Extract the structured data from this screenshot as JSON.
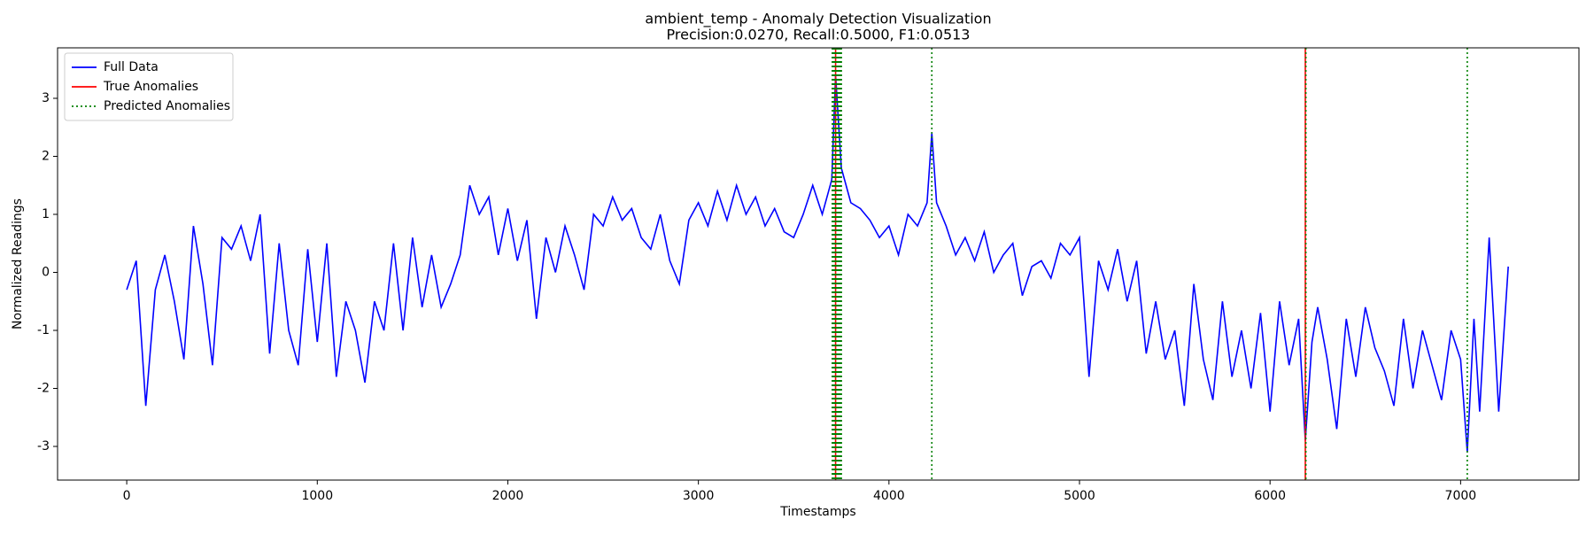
{
  "chart_data": {
    "type": "line",
    "title": "ambient_temp - Anomaly Detection Visualization",
    "subtitle": "Precision:0.0270, Recall:0.5000, F1:0.0513",
    "xlabel": "Timestamps",
    "ylabel": "Normalized Readings",
    "xlim": [
      -363,
      7621
    ],
    "ylim": [
      -3.58,
      3.87
    ],
    "xticks": [
      0,
      1000,
      2000,
      3000,
      4000,
      5000,
      6000,
      7000
    ],
    "yticks": [
      -3,
      -2,
      -1,
      0,
      1,
      2,
      3
    ],
    "legend": "upper left",
    "grid": false,
    "x": [
      0,
      50,
      100,
      150,
      200,
      250,
      300,
      350,
      400,
      450,
      500,
      550,
      600,
      650,
      700,
      750,
      800,
      850,
      900,
      950,
      1000,
      1050,
      1100,
      1150,
      1200,
      1250,
      1300,
      1350,
      1400,
      1450,
      1500,
      1550,
      1600,
      1650,
      1700,
      1750,
      1800,
      1850,
      1900,
      1950,
      2000,
      2050,
      2100,
      2150,
      2200,
      2250,
      2300,
      2350,
      2400,
      2450,
      2500,
      2550,
      2600,
      2650,
      2700,
      2750,
      2800,
      2850,
      2900,
      2950,
      3000,
      3050,
      3100,
      3150,
      3200,
      3250,
      3300,
      3350,
      3400,
      3450,
      3500,
      3550,
      3600,
      3650,
      3700,
      3720,
      3750,
      3800,
      3850,
      3900,
      3950,
      4000,
      4050,
      4100,
      4150,
      4200,
      4225,
      4250,
      4300,
      4350,
      4400,
      4450,
      4500,
      4550,
      4600,
      4650,
      4700,
      4750,
      4800,
      4850,
      4900,
      4950,
      5000,
      5050,
      5100,
      5150,
      5200,
      5250,
      5300,
      5350,
      5400,
      5450,
      5500,
      5550,
      5600,
      5650,
      5700,
      5750,
      5800,
      5850,
      5900,
      5950,
      6000,
      6050,
      6100,
      6150,
      6185,
      6220,
      6250,
      6300,
      6350,
      6400,
      6450,
      6500,
      6550,
      6600,
      6650,
      6700,
      6750,
      6800,
      6850,
      6900,
      6950,
      7000,
      7035,
      7070,
      7100,
      7150,
      7200,
      7250
    ],
    "series": [
      {
        "name": "Full Data",
        "color": "#0000ff",
        "values": [
          -0.3,
          0.2,
          -2.3,
          -0.3,
          0.3,
          -0.5,
          -1.5,
          0.8,
          -0.2,
          -1.6,
          0.6,
          0.4,
          0.8,
          0.2,
          1.0,
          -1.4,
          0.5,
          -1.0,
          -1.6,
          0.4,
          -1.2,
          0.5,
          -1.8,
          -0.5,
          -1.0,
          -1.9,
          -0.5,
          -1.0,
          0.5,
          -1.0,
          0.6,
          -0.6,
          0.3,
          -0.6,
          -0.2,
          0.3,
          1.5,
          1.0,
          1.3,
          0.3,
          1.1,
          0.2,
          0.9,
          -0.8,
          0.6,
          0.0,
          0.8,
          0.3,
          -0.3,
          1.0,
          0.8,
          1.3,
          0.9,
          1.1,
          0.6,
          0.4,
          1.0,
          0.2,
          -0.2,
          0.9,
          1.2,
          0.8,
          1.4,
          0.9,
          1.5,
          1.0,
          1.3,
          0.8,
          1.1,
          0.7,
          0.6,
          1.0,
          1.5,
          1.0,
          1.6,
          3.4,
          1.8,
          1.2,
          1.1,
          0.9,
          0.6,
          0.8,
          0.3,
          1.0,
          0.8,
          1.2,
          2.4,
          1.2,
          0.8,
          0.3,
          0.6,
          0.2,
          0.7,
          0.0,
          0.3,
          0.5,
          -0.4,
          0.1,
          0.2,
          -0.1,
          0.5,
          0.3,
          0.6,
          -1.8,
          0.2,
          -0.3,
          0.4,
          -0.5,
          0.2,
          -1.4,
          -0.5,
          -1.5,
          -1.0,
          -2.3,
          -0.2,
          -1.5,
          -2.2,
          -0.5,
          -1.8,
          -1.0,
          -2.0,
          -0.7,
          -2.4,
          -0.5,
          -1.6,
          -0.8,
          -2.9,
          -1.2,
          -0.6,
          -1.5,
          -2.7,
          -0.8,
          -1.8,
          -0.6,
          -1.3,
          -1.7,
          -2.3,
          -0.8,
          -2.0,
          -1.0,
          -1.6,
          -2.2,
          -1.0,
          -1.5,
          -3.1,
          -0.8,
          -2.4,
          0.6,
          -2.4,
          0.1
        ]
      }
    ],
    "markers": [
      {
        "name": "True Anomalies",
        "color": "#ff0000",
        "style": "solid",
        "x": [
          3720,
          6185
        ]
      },
      {
        "name": "Predicted Anomalies",
        "color": "#008000",
        "style": "dotted",
        "x": [
          3703,
          3704,
          3706,
          3707,
          3709,
          3710,
          3712,
          3713,
          3714,
          3716,
          3717,
          3719,
          3720,
          3721,
          3723,
          3724,
          3726,
          3727,
          3728,
          3730,
          3731,
          3733,
          3734,
          3735,
          3737,
          3738,
          3740,
          3742,
          3743,
          3745,
          3746,
          3748,
          3749,
          3750,
          4225,
          6188,
          7035
        ]
      }
    ]
  }
}
